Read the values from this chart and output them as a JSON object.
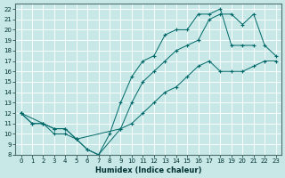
{
  "xlabel": "Humidex (Indice chaleur)",
  "bg_color": "#c8e8e8",
  "grid_color": "#ffffff",
  "line_color": "#006868",
  "xlim": [
    -0.5,
    23.5
  ],
  "ylim": [
    8,
    22.5
  ],
  "xticks": [
    0,
    1,
    2,
    3,
    4,
    5,
    6,
    7,
    8,
    9,
    10,
    11,
    12,
    13,
    14,
    15,
    16,
    17,
    18,
    19,
    20,
    21,
    22,
    23
  ],
  "yticks": [
    8,
    9,
    10,
    11,
    12,
    13,
    14,
    15,
    16,
    17,
    18,
    19,
    20,
    21,
    22
  ],
  "curve1_x": [
    0,
    1,
    2,
    3,
    4,
    5,
    6,
    7,
    8,
    9,
    10,
    11,
    12,
    13,
    14,
    15,
    16,
    17,
    18,
    19,
    20,
    21
  ],
  "curve1_y": [
    12,
    11,
    11,
    10.5,
    10.5,
    9.5,
    8.5,
    8,
    10,
    13,
    15.5,
    17,
    17.5,
    19.5,
    20,
    20,
    21.5,
    21.5,
    22,
    18.5,
    18.5,
    18.5
  ],
  "curve2_x": [
    0,
    1,
    2,
    3,
    4,
    5,
    6,
    7,
    9,
    10,
    11,
    12,
    13,
    14,
    15,
    16,
    17,
    18,
    19,
    20,
    21,
    22,
    23
  ],
  "curve2_y": [
    12,
    11,
    11,
    10,
    10,
    9.5,
    8.5,
    8,
    10.5,
    13,
    15,
    16,
    17,
    18,
    18.5,
    19,
    21,
    21.5,
    21.5,
    20.5,
    21.5,
    18.5,
    17.5
  ],
  "curve3_x": [
    0,
    2,
    3,
    4,
    5,
    9,
    10,
    11,
    12,
    13,
    14,
    15,
    16,
    17,
    18,
    19,
    20,
    21,
    22,
    23
  ],
  "curve3_y": [
    12,
    11,
    10.5,
    10.5,
    9.5,
    10.5,
    11,
    12,
    13,
    14,
    14.5,
    15.5,
    16.5,
    17,
    16,
    16,
    16,
    16.5,
    17,
    17
  ]
}
